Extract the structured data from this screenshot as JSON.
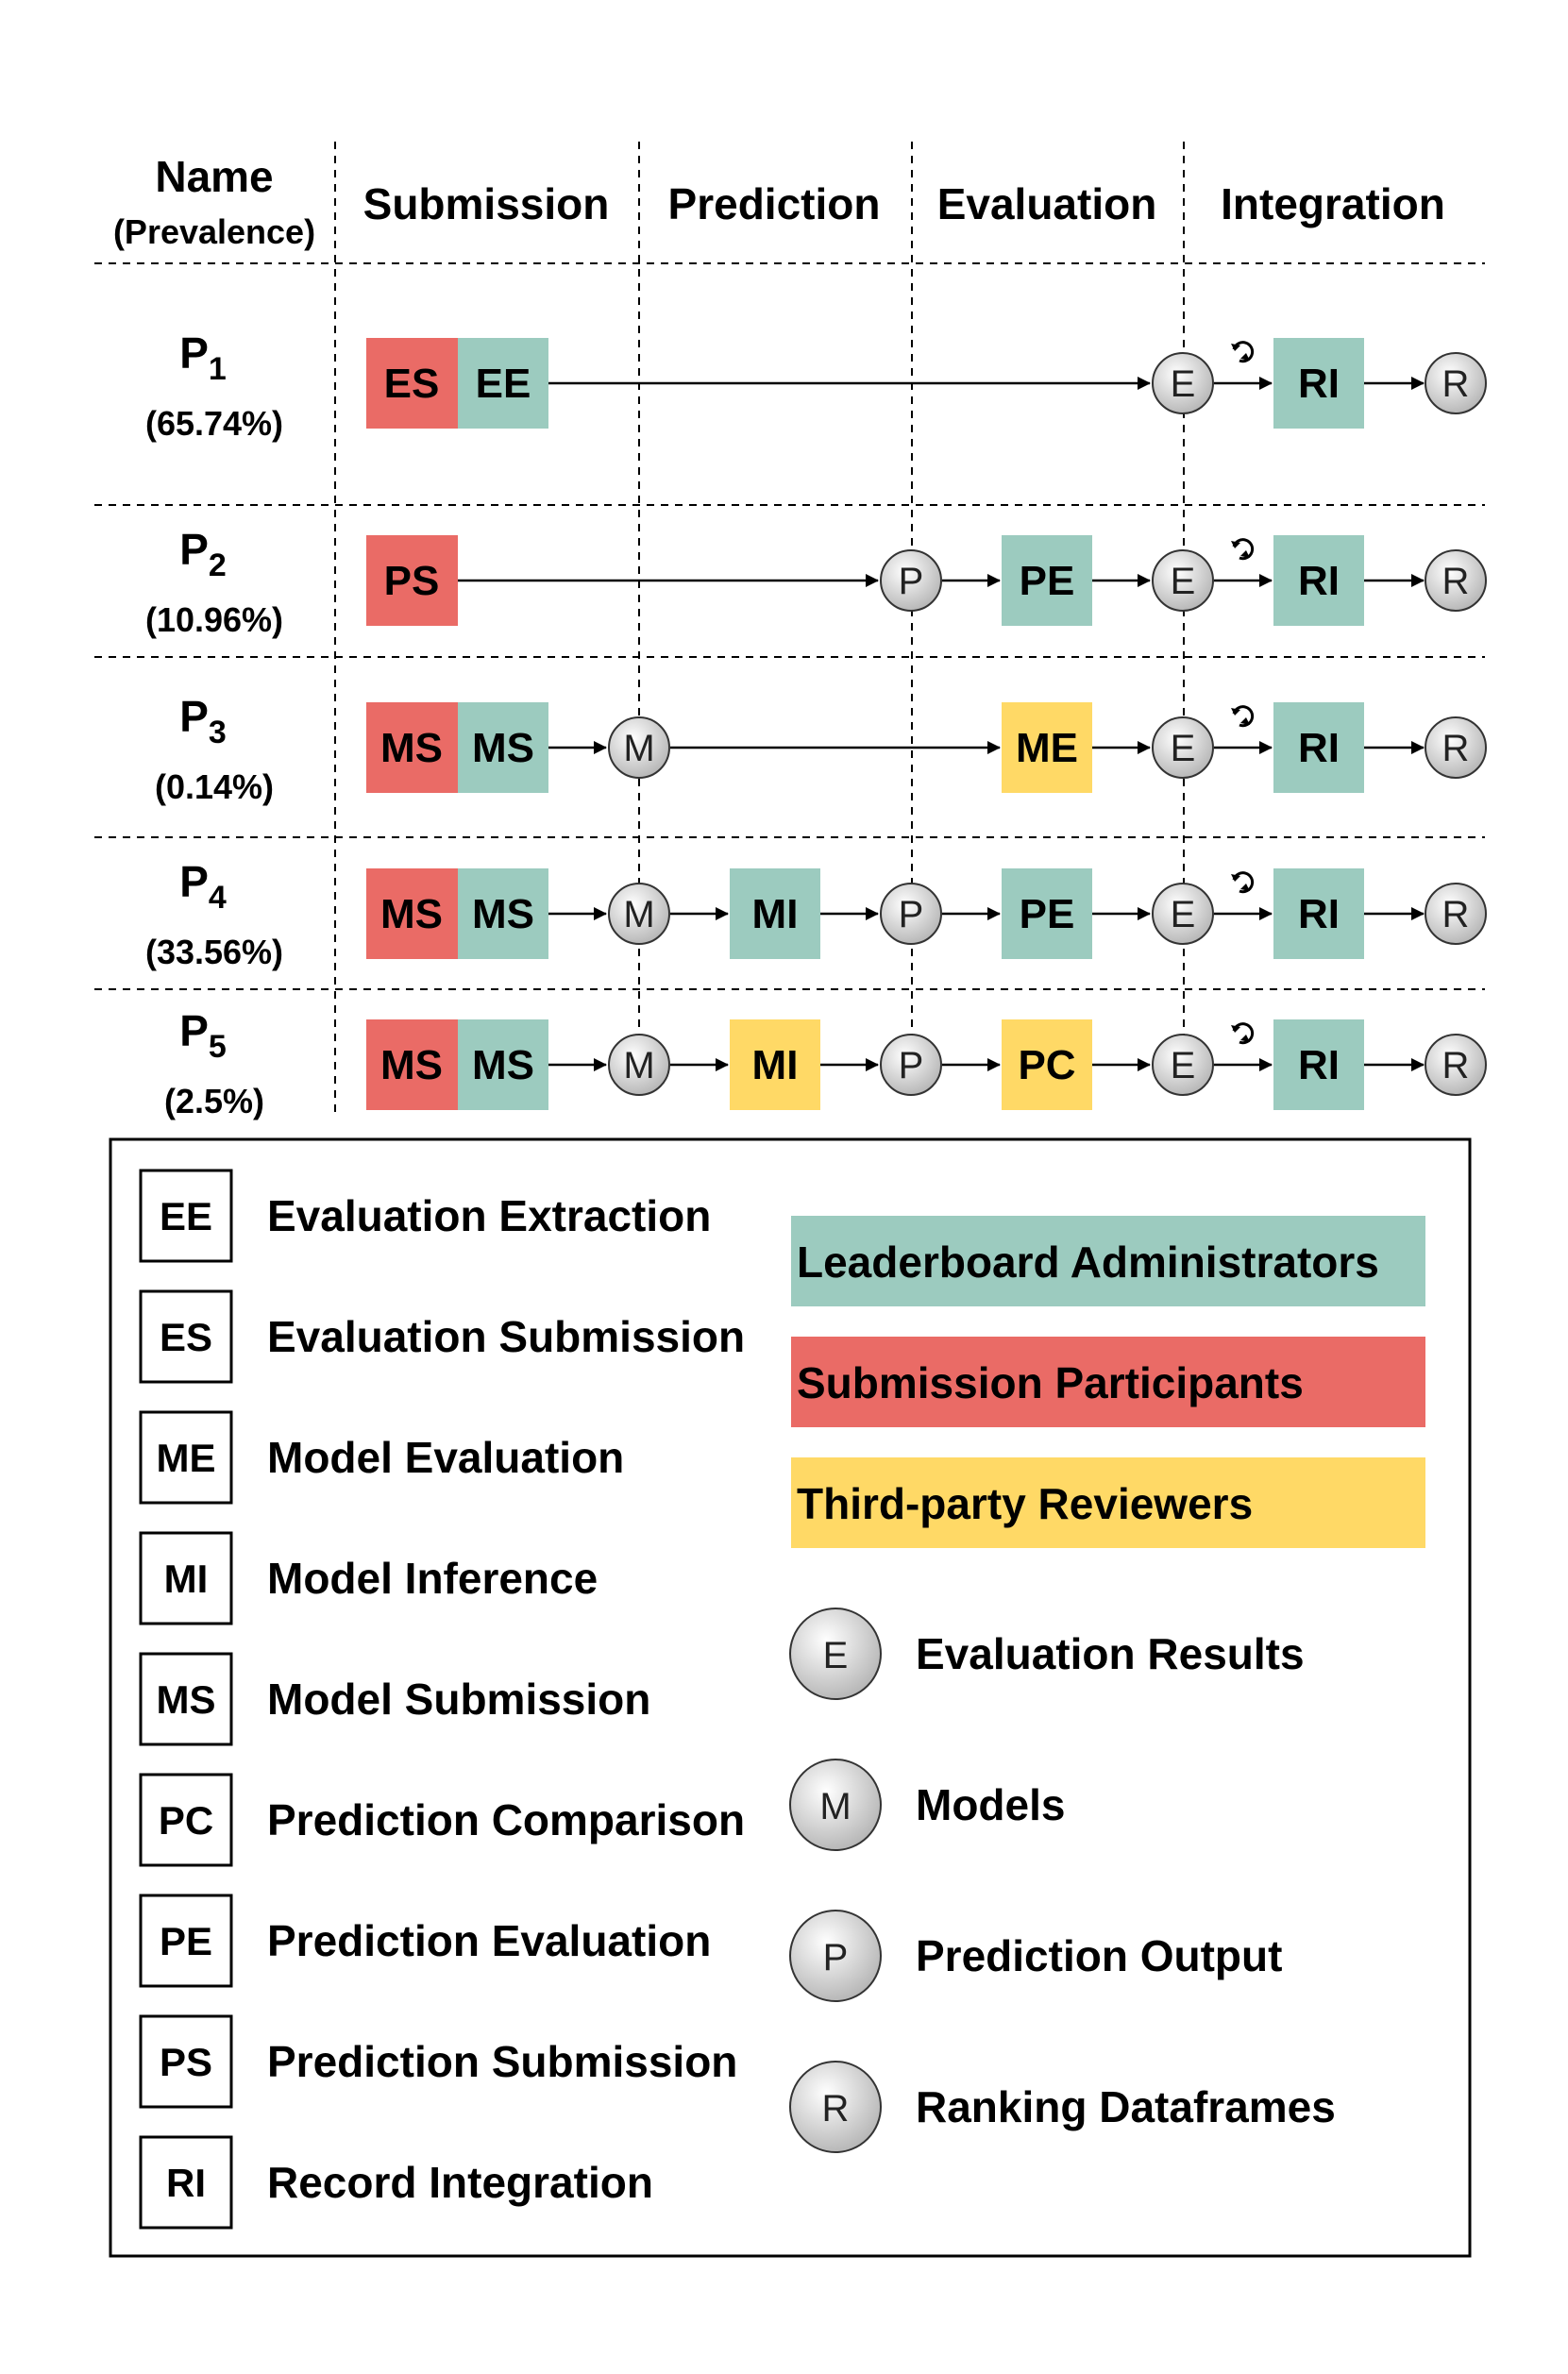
{
  "header": {
    "name_label": "Name",
    "prevalence_label": "(Prevalence)",
    "stages": [
      "Submission",
      "Prediction",
      "Evaluation",
      "Integration"
    ]
  },
  "rows": [
    {
      "name": "P",
      "sub": "1",
      "prevalence": "(65.74%)"
    },
    {
      "name": "P",
      "sub": "2",
      "prevalence": "(10.96%)"
    },
    {
      "name": "P",
      "sub": "3",
      "prevalence": "(0.14%)"
    },
    {
      "name": "P",
      "sub": "4",
      "prevalence": "(33.56%)"
    },
    {
      "name": "P",
      "sub": "5",
      "prevalence": "(2.5%)"
    }
  ],
  "nodes": {
    "r1": {
      "es": "ES",
      "ee": "EE",
      "e": "E",
      "ri": "RI",
      "r": "R"
    },
    "r2": {
      "ps": "PS",
      "p": "P",
      "pe": "PE",
      "e": "E",
      "ri": "RI",
      "r": "R"
    },
    "r3": {
      "ms1": "MS",
      "ms2": "MS",
      "m": "M",
      "me": "ME",
      "e": "E",
      "ri": "RI",
      "r": "R"
    },
    "r4": {
      "ms1": "MS",
      "ms2": "MS",
      "m": "M",
      "mi": "MI",
      "p": "P",
      "pe": "PE",
      "e": "E",
      "ri": "RI",
      "r": "R"
    },
    "r5": {
      "ms1": "MS",
      "ms2": "MS",
      "m": "M",
      "mi": "MI",
      "p": "P",
      "pc": "PC",
      "e": "E",
      "ri": "RI",
      "r": "R"
    }
  },
  "legend": {
    "abbreviations": [
      {
        "abbr": "EE",
        "label": "Evaluation Extraction"
      },
      {
        "abbr": "ES",
        "label": "Evaluation Submission"
      },
      {
        "abbr": "ME",
        "label": "Model Evaluation"
      },
      {
        "abbr": "MI",
        "label": "Model Inference"
      },
      {
        "abbr": "MS",
        "label": "Model Submission"
      },
      {
        "abbr": "PC",
        "label": "Prediction Comparison"
      },
      {
        "abbr": "PE",
        "label": "Prediction Evaluation"
      },
      {
        "abbr": "PS",
        "label": "Prediction Submission"
      },
      {
        "abbr": "RI",
        "label": "Record Integration"
      }
    ],
    "roles": [
      {
        "label": "Leaderboard Administrators",
        "color": "#9ccbbf"
      },
      {
        "label": "Submission Participants",
        "color": "#ea6b66"
      },
      {
        "label": "Third-party Reviewers",
        "color": "#ffd966"
      }
    ],
    "artifacts": [
      {
        "symbol": "E",
        "label": "Evaluation Results"
      },
      {
        "symbol": "M",
        "label": "Models"
      },
      {
        "symbol": "P",
        "label": "Prediction Output"
      },
      {
        "symbol": "R",
        "label": "Ranking Dataframes"
      }
    ]
  },
  "colors": {
    "admin": "#9ccbbf",
    "participant": "#ea6b66",
    "reviewer": "#ffd966"
  },
  "icons": {
    "refresh": "refresh-icon"
  }
}
